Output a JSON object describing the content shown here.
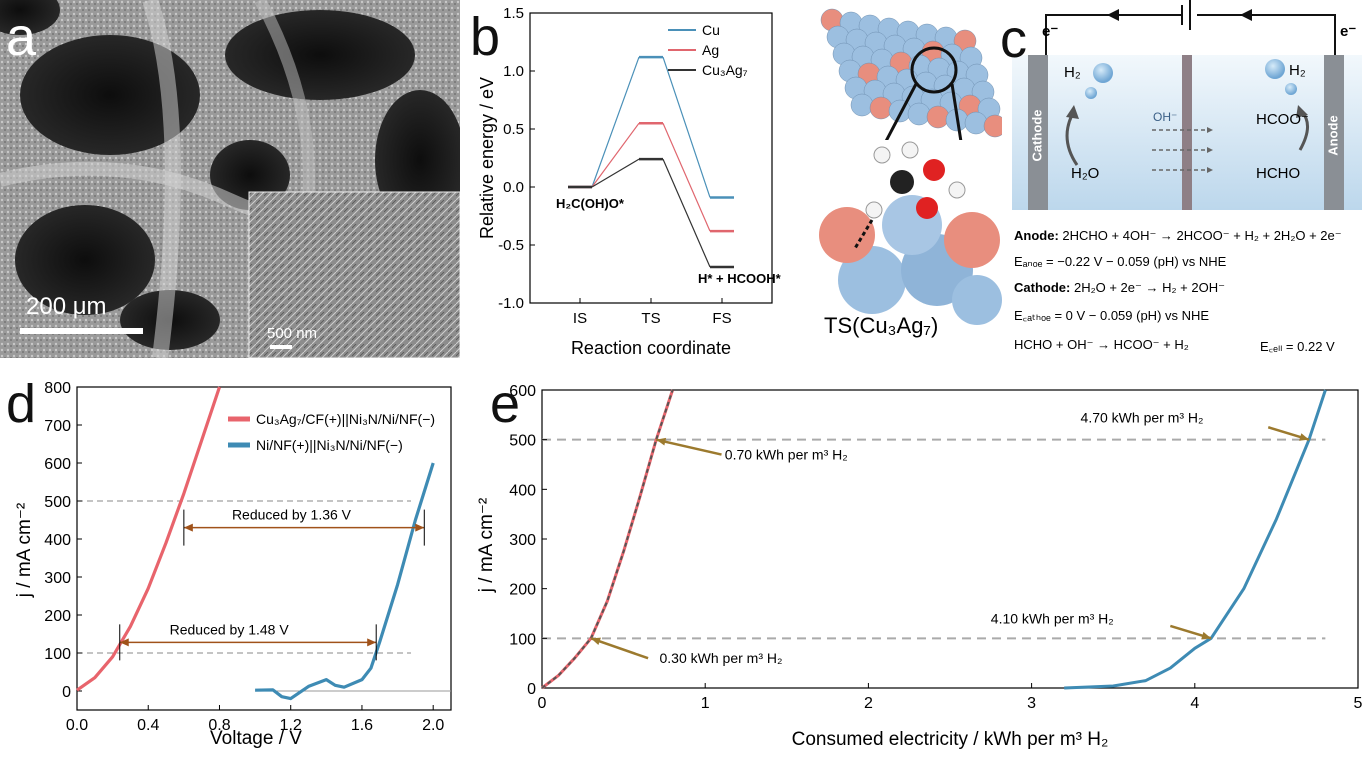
{
  "panels": {
    "a": {
      "label": "a",
      "scale_main": "200 μm",
      "scale_inset": "500 nm"
    },
    "b": {
      "label": "b",
      "ts_caption": "TS(Cu₃Ag₇)"
    },
    "c": {
      "label": "c",
      "electron_left": "e⁻",
      "electron_right": "e⁻",
      "cathode_label": "Cathode",
      "anode_label": "Anode",
      "h2_left": "H₂",
      "h2_right": "H₂",
      "oh": "OH⁻",
      "hcoo": "HCOO⁻",
      "h2o": "H₂O",
      "hcho": "HCHO",
      "eq_anode_lbl": "Anode:",
      "eq_anode": "2HCHO + 4OH⁻ → 2HCOO⁻ + H₂ + 2H₂O + 2e⁻",
      "eq_eanode": "Eₐₙₒₑ = −0.22 V − 0.059 (pH) vs NHE",
      "eq_cathode_lbl": "Cathode:",
      "eq_cathode": "2H₂O + 2e⁻ → H₂ + 2OH⁻",
      "eq_ecathode": "E꜀ₐₜₕₒₑ =  0 V − 0.059 (pH) vs NHE",
      "eq_total": "HCHO  +  OH⁻  →  HCOO⁻  +  H₂",
      "eq_ecell": "E꜀ₑₗₗ = 0.22 V"
    },
    "d": {
      "label": "d"
    },
    "e": {
      "label": "e"
    }
  },
  "colors": {
    "cu": "#4a90b8",
    "ag": "#e0666e",
    "cuag": "#333333",
    "red_curve": "#e8646c",
    "blue_curve": "#3e8bb4",
    "arrow_brown": "#a0521a",
    "annot_gold": "#9c7a2e"
  },
  "chart_data": [
    {
      "id": "b",
      "type": "line",
      "xlabel": "Reaction coordinate",
      "ylabel": "Relative energy / eV",
      "categories": [
        "IS",
        "TS",
        "FS"
      ],
      "ylim": [
        -1.0,
        1.5
      ],
      "yticks": [
        "-1.0",
        "-0.5",
        "0.0",
        "0.5",
        "1.0",
        "1.5"
      ],
      "series": [
        {
          "name": "Cu",
          "values": [
            0.0,
            1.12,
            -0.09
          ]
        },
        {
          "name": "Ag",
          "values": [
            0.0,
            0.55,
            -0.38
          ]
        },
        {
          "name": "Cu₃Ag₇",
          "values": [
            0.0,
            0.24,
            -0.69
          ]
        }
      ],
      "annotations": [
        "H₂C(OH)O*",
        "H* + HCOOH*"
      ]
    },
    {
      "id": "d",
      "type": "line",
      "xlabel": "Voltage / V",
      "ylabel": "j / mA cm⁻²",
      "xlim": [
        0.0,
        2.1
      ],
      "ylim": [
        -50,
        800
      ],
      "xticks": [
        "0.0",
        "0.4",
        "0.8",
        "1.2",
        "1.6",
        "2.0"
      ],
      "yticks": [
        "0",
        "100",
        "200",
        "300",
        "400",
        "500",
        "600",
        "700",
        "800"
      ],
      "series": [
        {
          "name": "Cu₃Ag₇/CF(+)||Ni₃N/Ni/NF(−)",
          "points": [
            [
              0.0,
              2
            ],
            [
              0.1,
              35
            ],
            [
              0.2,
              90
            ],
            [
              0.3,
              170
            ],
            [
              0.4,
              270
            ],
            [
              0.5,
              390
            ],
            [
              0.6,
              520
            ],
            [
              0.7,
              660
            ],
            [
              0.8,
              800
            ]
          ]
        },
        {
          "name": "Ni/NF(+)||Ni₃N/Ni/NF(−)",
          "points": [
            [
              1.0,
              2
            ],
            [
              1.1,
              3
            ],
            [
              1.15,
              -15
            ],
            [
              1.2,
              -20
            ],
            [
              1.3,
              12
            ],
            [
              1.4,
              30
            ],
            [
              1.45,
              15
            ],
            [
              1.5,
              10
            ],
            [
              1.6,
              30
            ],
            [
              1.65,
              60
            ],
            [
              1.7,
              130
            ],
            [
              1.8,
              280
            ],
            [
              1.9,
              450
            ],
            [
              2.0,
              600
            ]
          ]
        }
      ],
      "annotations": [
        "Reduced by 1.36 V",
        "Reduced by 1.48 V"
      ]
    },
    {
      "id": "e",
      "type": "line",
      "xlabel": "Consumed electricity / kWh per m³ H₂",
      "ylabel": "j / mA cm⁻²",
      "xlim": [
        0,
        5
      ],
      "ylim": [
        0,
        600
      ],
      "xticks": [
        "0",
        "1",
        "2",
        "3",
        "4",
        "5"
      ],
      "yticks": [
        "0",
        "100",
        "200",
        "300",
        "400",
        "500",
        "600"
      ],
      "series": [
        {
          "name": "Cu₃Ag₇/CF(+)||Ni₃N/Ni/NF(−)",
          "points": [
            [
              0,
              0
            ],
            [
              0.1,
              25
            ],
            [
              0.2,
              60
            ],
            [
              0.3,
              100
            ],
            [
              0.4,
              175
            ],
            [
              0.5,
              275
            ],
            [
              0.6,
              385
            ],
            [
              0.7,
              500
            ],
            [
              0.8,
              600
            ]
          ]
        },
        {
          "name": "Ni/NF(+)||Ni₃N/Ni/NF(−)",
          "points": [
            [
              3.2,
              0
            ],
            [
              3.5,
              4
            ],
            [
              3.7,
              15
            ],
            [
              3.85,
              40
            ],
            [
              4.0,
              80
            ],
            [
              4.1,
              100
            ],
            [
              4.3,
              200
            ],
            [
              4.5,
              340
            ],
            [
              4.7,
              500
            ],
            [
              4.8,
              600
            ]
          ]
        }
      ],
      "annotations": [
        "4.70 kWh per m³ H₂",
        "0.70 kWh per m³ H₂",
        "4.10 kWh per m³ H₂",
        "0.30 kWh per m³ H₂"
      ]
    }
  ]
}
